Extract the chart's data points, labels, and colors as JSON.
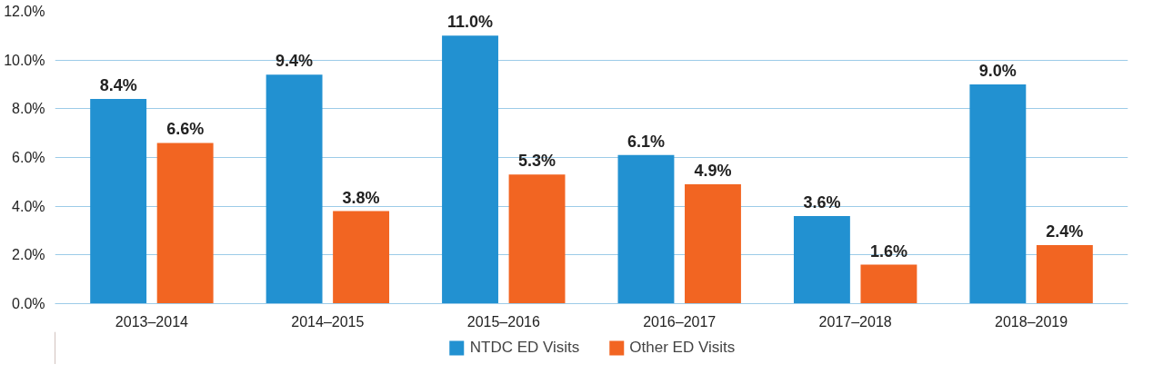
{
  "chart_data": {
    "type": "bar",
    "categories": [
      "2013–2014",
      "2014–2015",
      "2015–2016",
      "2016–2017",
      "2017–2018",
      "2018–2019"
    ],
    "series": [
      {
        "name": "NTDC ED Visits",
        "color": "#2291d1",
        "values": [
          8.4,
          9.4,
          11.0,
          6.1,
          3.6,
          9.0
        ],
        "value_labels": [
          "8.4%",
          "9.4%",
          "11.0%",
          "6.1%",
          "3.6%",
          "9.0%"
        ]
      },
      {
        "name": "Other ED Visits",
        "color": "#f26522",
        "values": [
          6.6,
          3.8,
          5.3,
          4.9,
          1.6,
          2.4
        ],
        "value_labels": [
          "6.6%",
          "3.8%",
          "5.3%",
          "4.9%",
          "1.6%",
          "2.4%"
        ]
      }
    ],
    "ylim": [
      0,
      12
    ],
    "yticks": [
      {
        "value": 0,
        "label": "0.0%"
      },
      {
        "value": 2,
        "label": "2.0%"
      },
      {
        "value": 4,
        "label": "4.0%"
      },
      {
        "value": 6,
        "label": "6.0%"
      },
      {
        "value": 8,
        "label": "8.0%"
      },
      {
        "value": 10,
        "label": "10.0%"
      },
      {
        "value": 12,
        "label": "12.0%"
      }
    ],
    "grid": "y",
    "legend": "bottom"
  }
}
